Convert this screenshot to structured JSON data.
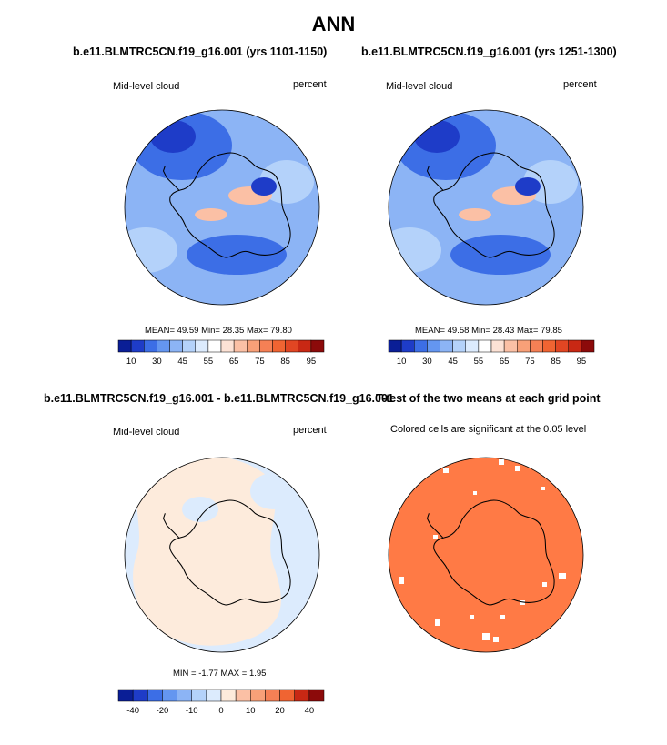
{
  "title": "ANN",
  "chart_data": [
    {
      "type": "heatmap",
      "title": "b.e11.BLMTRC5CN.f19_g16.001 (yrs 1101-1150)",
      "left_label": "Mid-level cloud",
      "right_label": "percent",
      "stats": {
        "mean_label": "MEAN=",
        "mean": "49.59",
        "min_label": "Min=",
        "min": "28.35",
        "max_label": "Max=",
        "max": "79.80"
      },
      "colorbar": {
        "ticks": [
          "10",
          "30",
          "45",
          "55",
          "65",
          "75",
          "85",
          "95"
        ],
        "range": [
          5,
          100
        ]
      }
    },
    {
      "type": "heatmap",
      "title": "b.e11.BLMTRC5CN.f19_g16.001 (yrs 1251-1300)",
      "left_label": "Mid-level cloud",
      "right_label": "percent",
      "stats": {
        "mean_label": "MEAN=",
        "mean": "49.58",
        "min_label": "Min=",
        "min": "28.43",
        "max_label": "Max=",
        "max": "79.85"
      },
      "colorbar": {
        "ticks": [
          "10",
          "30",
          "45",
          "55",
          "65",
          "75",
          "85",
          "95"
        ],
        "range": [
          5,
          100
        ]
      }
    },
    {
      "type": "heatmap",
      "title": "b.e11.BLMTRC5CN.f19_g16.001 - b.e11.BLMTRC5CN.f19_g16.001",
      "left_label": "Mid-level cloud",
      "right_label": "percent",
      "stats": {
        "min_label": "MIN =",
        "min": "-1.77",
        "max_label": "MAX =",
        "max": "1.95"
      },
      "colorbar": {
        "ticks": [
          "-40",
          "-20",
          "-10",
          "0",
          "10",
          "20",
          "40"
        ],
        "range": [
          -50,
          50
        ]
      }
    },
    {
      "type": "heatmap",
      "title": "T-test of the two means at each grid point",
      "subtitle": "Colored cells are significant at the 0.05 level",
      "fill_color": "#ff7a45"
    }
  ],
  "colors": {
    "abs_scale": [
      "#0a1e96",
      "#1e3cc8",
      "#3c6ee6",
      "#6496f0",
      "#8cb4f5",
      "#b4d2fa",
      "#dcebfd",
      "#ffffff",
      "#fde2d5",
      "#fbc0a5",
      "#f8a078",
      "#f58055",
      "#f06432",
      "#e14623",
      "#c82814",
      "#8c0a0a"
    ],
    "diff_scale": [
      "#0a1e96",
      "#1e3cc8",
      "#3c6ee6",
      "#6496f0",
      "#8cb4f5",
      "#b4d2fa",
      "#dcebfd",
      "#fdebdc",
      "#fbc0a5",
      "#f8a078",
      "#f58055",
      "#f06432",
      "#c82814",
      "#8c0a0a"
    ]
  }
}
